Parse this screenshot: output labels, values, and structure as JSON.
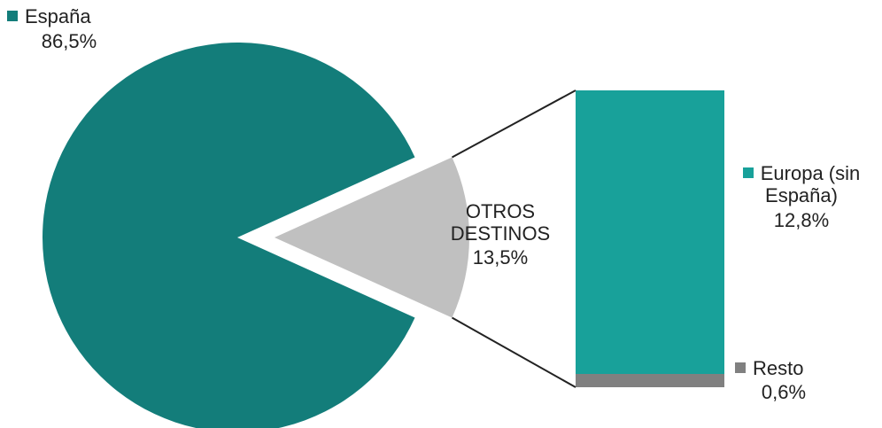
{
  "chart_data": {
    "type": "bar_of_pie",
    "categories": [
      "España",
      "OTROS DESTINOS"
    ],
    "values": [
      86.5,
      13.5
    ],
    "value_labels": [
      "86,5%",
      "13,5%"
    ],
    "colors": [
      "#137d7a",
      "#c0c0c0"
    ],
    "breakdown": {
      "type": "bar",
      "categories": [
        "Europa (sin España)",
        "Resto"
      ],
      "values": [
        12.8,
        0.6
      ],
      "value_labels": [
        "12,8%",
        "0,6%"
      ],
      "colors": [
        "#18a19a",
        "#808080"
      ]
    }
  }
}
